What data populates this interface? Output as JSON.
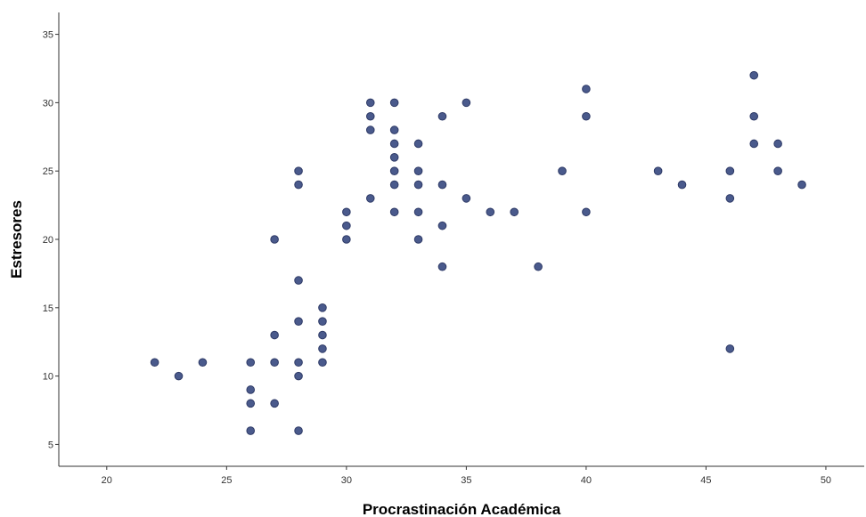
{
  "chart_data": {
    "type": "scatter",
    "title": "",
    "xlabel": "Procrastinación Académica",
    "ylabel": "Estresores",
    "xlim": [
      18,
      51.6
    ],
    "ylim": [
      3.4,
      36.6
    ],
    "xticks": [
      20,
      25,
      30,
      35,
      40,
      45,
      50
    ],
    "yticks": [
      5,
      10,
      15,
      20,
      25,
      30,
      35
    ],
    "grid": false,
    "marker_color": "#4a5a8c",
    "marker_edge": "#2e3a66",
    "points": [
      {
        "x": 22,
        "y": 11
      },
      {
        "x": 23,
        "y": 10
      },
      {
        "x": 24,
        "y": 11
      },
      {
        "x": 26,
        "y": 11
      },
      {
        "x": 26,
        "y": 9
      },
      {
        "x": 26,
        "y": 8
      },
      {
        "x": 26,
        "y": 6
      },
      {
        "x": 27,
        "y": 20
      },
      {
        "x": 27,
        "y": 13
      },
      {
        "x": 27,
        "y": 11
      },
      {
        "x": 27,
        "y": 8
      },
      {
        "x": 28,
        "y": 25
      },
      {
        "x": 28,
        "y": 24
      },
      {
        "x": 28,
        "y": 17
      },
      {
        "x": 28,
        "y": 14
      },
      {
        "x": 28,
        "y": 11
      },
      {
        "x": 28,
        "y": 10
      },
      {
        "x": 28,
        "y": 6
      },
      {
        "x": 29,
        "y": 15
      },
      {
        "x": 29,
        "y": 14
      },
      {
        "x": 29,
        "y": 13
      },
      {
        "x": 29,
        "y": 12
      },
      {
        "x": 29,
        "y": 11
      },
      {
        "x": 30,
        "y": 22
      },
      {
        "x": 30,
        "y": 21
      },
      {
        "x": 30,
        "y": 20
      },
      {
        "x": 31,
        "y": 30
      },
      {
        "x": 31,
        "y": 29
      },
      {
        "x": 31,
        "y": 28
      },
      {
        "x": 31,
        "y": 23
      },
      {
        "x": 32,
        "y": 30
      },
      {
        "x": 32,
        "y": 28
      },
      {
        "x": 32,
        "y": 27
      },
      {
        "x": 32,
        "y": 26
      },
      {
        "x": 32,
        "y": 25
      },
      {
        "x": 32,
        "y": 24
      },
      {
        "x": 32,
        "y": 22
      },
      {
        "x": 33,
        "y": 27
      },
      {
        "x": 33,
        "y": 25
      },
      {
        "x": 33,
        "y": 24
      },
      {
        "x": 33,
        "y": 22
      },
      {
        "x": 33,
        "y": 20
      },
      {
        "x": 34,
        "y": 29
      },
      {
        "x": 34,
        "y": 24
      },
      {
        "x": 34,
        "y": 21
      },
      {
        "x": 34,
        "y": 18
      },
      {
        "x": 35,
        "y": 30
      },
      {
        "x": 35,
        "y": 23
      },
      {
        "x": 36,
        "y": 22
      },
      {
        "x": 37,
        "y": 22
      },
      {
        "x": 38,
        "y": 18
      },
      {
        "x": 39,
        "y": 25
      },
      {
        "x": 40,
        "y": 31
      },
      {
        "x": 40,
        "y": 29
      },
      {
        "x": 40,
        "y": 22
      },
      {
        "x": 43,
        "y": 25
      },
      {
        "x": 44,
        "y": 24
      },
      {
        "x": 46,
        "y": 25
      },
      {
        "x": 46,
        "y": 23
      },
      {
        "x": 46,
        "y": 12
      },
      {
        "x": 47,
        "y": 32
      },
      {
        "x": 47,
        "y": 29
      },
      {
        "x": 47,
        "y": 27
      },
      {
        "x": 48,
        "y": 27
      },
      {
        "x": 48,
        "y": 25
      },
      {
        "x": 49,
        "y": 24
      }
    ]
  }
}
